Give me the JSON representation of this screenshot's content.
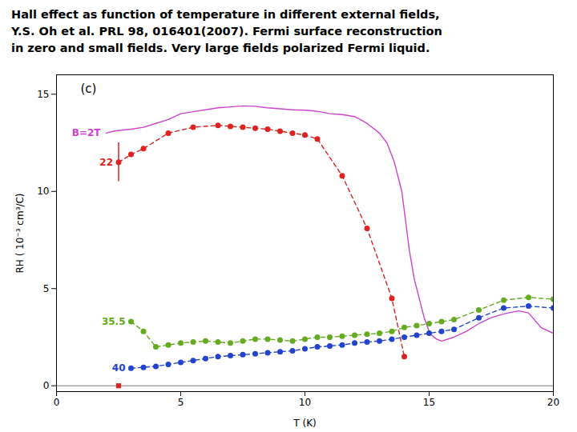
{
  "chart_data": {
    "type": "line",
    "title": [
      "Hall effect as function of temperature in different external fields,",
      "Y.S. Oh et al. PRL 98, 016401(2007). Fermi surface reconstruction",
      "in zero and small fields.  Very large fields polarized Fermi liquid."
    ],
    "panel_label": "(c)",
    "xlabel": "T (K)",
    "ylabel": "RH ( 10⁻³ cm³/C)",
    "xlim": [
      0,
      20
    ],
    "ylim": [
      -0.3,
      16
    ],
    "xticks": [
      0,
      5,
      10,
      15,
      20
    ],
    "yticks": [
      0,
      5,
      10,
      15
    ],
    "grid": false,
    "reference_lines": [
      0
    ],
    "series": [
      {
        "name": "B=2T",
        "color": "#cc44cc",
        "line_style": "solid",
        "marker": "none",
        "x": [
          2.0,
          2.3,
          2.6,
          3.0,
          3.5,
          4.0,
          4.5,
          5.0,
          5.5,
          6.0,
          6.5,
          7.0,
          7.5,
          8.0,
          8.5,
          9.0,
          9.5,
          10.0,
          10.3,
          10.6,
          11.0,
          11.5,
          12.0,
          12.5,
          13.0,
          13.3,
          13.6,
          13.9,
          14.05,
          14.2,
          14.4,
          14.6,
          14.8,
          15.0,
          15.1,
          15.2,
          15.3,
          15.5,
          16.0,
          16.5,
          17.0,
          17.5,
          18.0,
          18.2,
          18.4,
          18.6,
          18.8,
          19.0,
          19.5,
          20.0
        ],
        "values": [
          13.0,
          13.1,
          13.15,
          13.2,
          13.3,
          13.5,
          13.7,
          14.0,
          14.1,
          14.2,
          14.3,
          14.35,
          14.4,
          14.38,
          14.3,
          14.25,
          14.2,
          14.18,
          14.15,
          14.1,
          14.0,
          13.95,
          13.85,
          13.5,
          13.0,
          12.5,
          11.5,
          10.0,
          8.5,
          7.0,
          5.5,
          4.5,
          3.5,
          2.8,
          2.6,
          2.5,
          2.4,
          2.3,
          2.5,
          2.8,
          3.2,
          3.5,
          3.7,
          3.75,
          3.8,
          3.85,
          3.8,
          3.75,
          3.0,
          2.7
        ]
      },
      {
        "name": "22",
        "color": "#dd2222",
        "line_style": "dashed",
        "marker": "circle",
        "x": [
          2.5,
          3.0,
          3.5,
          4.5,
          5.5,
          6.5,
          7.0,
          7.5,
          8.0,
          8.5,
          9.0,
          9.5,
          10.0,
          10.5,
          11.5,
          12.5,
          13.5,
          14.0
        ],
        "values": [
          11.5,
          11.9,
          12.2,
          13.0,
          13.3,
          13.4,
          13.35,
          13.3,
          13.25,
          13.2,
          13.1,
          13.0,
          12.9,
          12.7,
          10.8,
          8.1,
          4.5,
          1.5
        ],
        "error_bars": [
          {
            "x": 2.5,
            "value": 11.5,
            "err": 1.0
          }
        ],
        "extra_points": [
          {
            "x": 2.5,
            "value": 0.0,
            "marker": "square"
          }
        ]
      },
      {
        "name": "35.5",
        "color": "#66aa22",
        "line_style": "dashed",
        "marker": "circle",
        "x": [
          3.0,
          3.5,
          4.0,
          4.5,
          5.0,
          5.5,
          6.0,
          6.5,
          7.0,
          7.5,
          8.0,
          8.5,
          9.0,
          9.5,
          10.0,
          10.5,
          11.0,
          11.5,
          12.0,
          12.5,
          13.0,
          13.5,
          14.0,
          14.5,
          15.0,
          15.5,
          16.0,
          17.0,
          18.0,
          19.0,
          20.0
        ],
        "values": [
          3.3,
          2.8,
          2.0,
          2.1,
          2.2,
          2.25,
          2.3,
          2.25,
          2.2,
          2.3,
          2.4,
          2.4,
          2.35,
          2.3,
          2.4,
          2.5,
          2.5,
          2.55,
          2.6,
          2.65,
          2.7,
          2.8,
          3.0,
          3.1,
          3.2,
          3.3,
          3.4,
          3.9,
          4.4,
          4.55,
          4.45
        ]
      },
      {
        "name": "40",
        "color": "#2244cc",
        "line_style": "dashed",
        "marker": "circle",
        "x": [
          3.0,
          3.5,
          4.0,
          4.5,
          5.0,
          5.5,
          6.0,
          6.5,
          7.0,
          7.5,
          8.0,
          8.5,
          9.0,
          9.5,
          10.0,
          10.5,
          11.0,
          11.5,
          12.0,
          12.5,
          13.0,
          13.5,
          14.0,
          14.5,
          15.0,
          15.5,
          16.0,
          17.0,
          18.0,
          19.0,
          20.0
        ],
        "values": [
          0.9,
          0.95,
          1.0,
          1.1,
          1.2,
          1.3,
          1.4,
          1.5,
          1.55,
          1.6,
          1.65,
          1.7,
          1.75,
          1.8,
          1.9,
          2.0,
          2.05,
          2.1,
          2.2,
          2.25,
          2.3,
          2.4,
          2.5,
          2.6,
          2.7,
          2.8,
          2.9,
          3.5,
          4.0,
          4.1,
          4.0
        ]
      }
    ]
  }
}
